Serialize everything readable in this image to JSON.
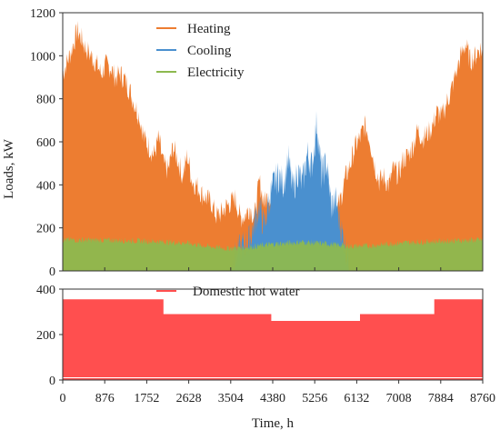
{
  "chart_data": [
    {
      "type": "area",
      "panel": "top",
      "xlabel": "",
      "ylabel": "Loads, kW",
      "xlim": [
        0,
        8760
      ],
      "ylim": [
        0,
        1200
      ],
      "yticks": [
        "0",
        "200",
        "400",
        "600",
        "800",
        "1000",
        "1200"
      ],
      "grid": false,
      "legend_position": "top-center",
      "legend": [
        "Heating",
        "Cooling",
        "Electricity"
      ],
      "series": [
        {
          "name": "Heating",
          "color": "#ED7D31",
          "x": [
            0,
            100,
            200,
            300,
            400,
            500,
            600,
            700,
            800,
            900,
            1000,
            1100,
            1200,
            1300,
            1400,
            1500,
            1600,
            1700,
            1800,
            1900,
            2000,
            2100,
            2200,
            2300,
            2400,
            2500,
            2600,
            2700,
            2800,
            2900,
            3000,
            3100,
            3200,
            3300,
            3400,
            3500,
            3600,
            3700,
            3800,
            3900,
            4000,
            4100,
            4200,
            4300,
            4400,
            4500,
            4600,
            4700,
            4800,
            4900,
            5000,
            5100,
            5200,
            5300,
            5400,
            5500,
            5600,
            5700,
            5800,
            5900,
            6000,
            6100,
            6200,
            6300,
            6400,
            6500,
            6600,
            6700,
            6800,
            6900,
            7000,
            7100,
            7200,
            7300,
            7400,
            7500,
            7600,
            7700,
            7800,
            7900,
            8000,
            8100,
            8200,
            8300,
            8400,
            8500,
            8600,
            8700,
            8760
          ],
          "values": [
            900,
            960,
            1020,
            1100,
            1060,
            1010,
            980,
            950,
            900,
            940,
            930,
            880,
            900,
            870,
            820,
            760,
            700,
            600,
            560,
            520,
            600,
            480,
            450,
            560,
            500,
            420,
            520,
            400,
            380,
            340,
            320,
            300,
            240,
            250,
            280,
            300,
            320,
            230,
            240,
            280,
            230,
            400,
            300,
            340,
            300,
            230,
            260,
            300,
            200,
            250,
            180,
            220,
            200,
            160,
            200,
            180,
            200,
            250,
            320,
            420,
            480,
            560,
            600,
            660,
            600,
            480,
            400,
            420,
            380,
            460,
            430,
            500,
            520,
            560,
            640,
            600,
            620,
            650,
            720,
            700,
            760,
            820,
            900,
            980,
            1040,
            960,
            980,
            1020,
            1000
          ]
        },
        {
          "name": "Cooling",
          "color": "#4A90CF",
          "x": [
            3500,
            3700,
            3900,
            4000,
            4100,
            4200,
            4300,
            4400,
            4500,
            4600,
            4700,
            4800,
            4900,
            5000,
            5100,
            5200,
            5300,
            5400,
            5500,
            5600,
            5700,
            5800,
            5900,
            6000
          ],
          "values": [
            0,
            80,
            120,
            200,
            280,
            180,
            300,
            380,
            420,
            380,
            500,
            350,
            440,
            380,
            520,
            460,
            670,
            420,
            480,
            280,
            300,
            180,
            80,
            0
          ]
        },
        {
          "name": "Electricity",
          "color": "#8DB94F",
          "x": [
            0,
            1000,
            2000,
            2600,
            3000,
            3400,
            3800,
            4380,
            5000,
            5600,
            6000,
            6400,
            7000,
            8000,
            8760
          ],
          "values": [
            140,
            138,
            132,
            125,
            110,
            100,
            105,
            120,
            130,
            120,
            110,
            112,
            125,
            135,
            140
          ]
        }
      ]
    },
    {
      "type": "area",
      "panel": "bottom",
      "xlabel": "Time, h",
      "ylabel": "",
      "xlim": [
        0,
        8760
      ],
      "ylim": [
        0,
        400
      ],
      "xticks": [
        "0",
        "876",
        "1752",
        "2628",
        "3504",
        "4380",
        "5256",
        "6132",
        "7008",
        "7884",
        "8760"
      ],
      "yticks": [
        "0",
        "200",
        "400"
      ],
      "grid": false,
      "legend_position": "top-center",
      "legend": [
        "Domestic hot water"
      ],
      "series": [
        {
          "name": "Domestic hot water",
          "color": "#FF4F4F",
          "x": [
            0,
            2100,
            2100,
            4350,
            4350,
            6200,
            6200,
            7750,
            7750,
            8760
          ],
          "values": [
            355,
            355,
            290,
            290,
            260,
            260,
            290,
            290,
            355,
            355
          ]
        }
      ]
    }
  ]
}
